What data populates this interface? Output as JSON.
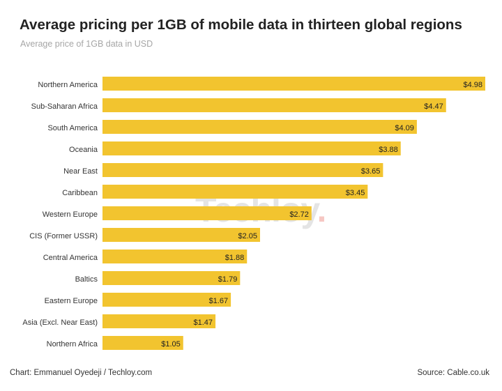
{
  "watermark": {
    "text": "Techloy",
    "dot": "."
  },
  "footer": {
    "credit": "Chart: Emmanuel Oyedeji / Techloy.com",
    "source": "Source: Cable.co.uk"
  },
  "colors": {
    "bar": "#F2C42F",
    "text": "#333333",
    "title": "#222222",
    "subtitle": "#a6a6a6"
  },
  "chart_data": {
    "type": "bar",
    "orientation": "horizontal",
    "title": "Average pricing per 1GB of mobile data in thirteen global regions",
    "subtitle": "Average price of 1GB data in USD",
    "categories": [
      "Northern America",
      "Sub-Saharan Africa",
      "South America",
      "Oceania",
      "Near East",
      "Caribbean",
      "Western Europe",
      "CIS (Former USSR)",
      "Central America",
      "Baltics",
      "Eastern Europe",
      "Asia (Excl. Near East)",
      "Northern Africa"
    ],
    "values": [
      4.98,
      4.47,
      4.09,
      3.88,
      3.65,
      3.45,
      2.72,
      2.05,
      1.88,
      1.79,
      1.67,
      1.47,
      1.05
    ],
    "data_labels": [
      "$4.98",
      "$4.47",
      "$4.09",
      "$3.88",
      "$3.65",
      "$3.45",
      "$2.72",
      "$2.05",
      "$1.88",
      "$1.79",
      "$1.67",
      "$1.47",
      "$1.05"
    ],
    "xlim": [
      0,
      4.98
    ],
    "grid": false,
    "legend": "none"
  }
}
